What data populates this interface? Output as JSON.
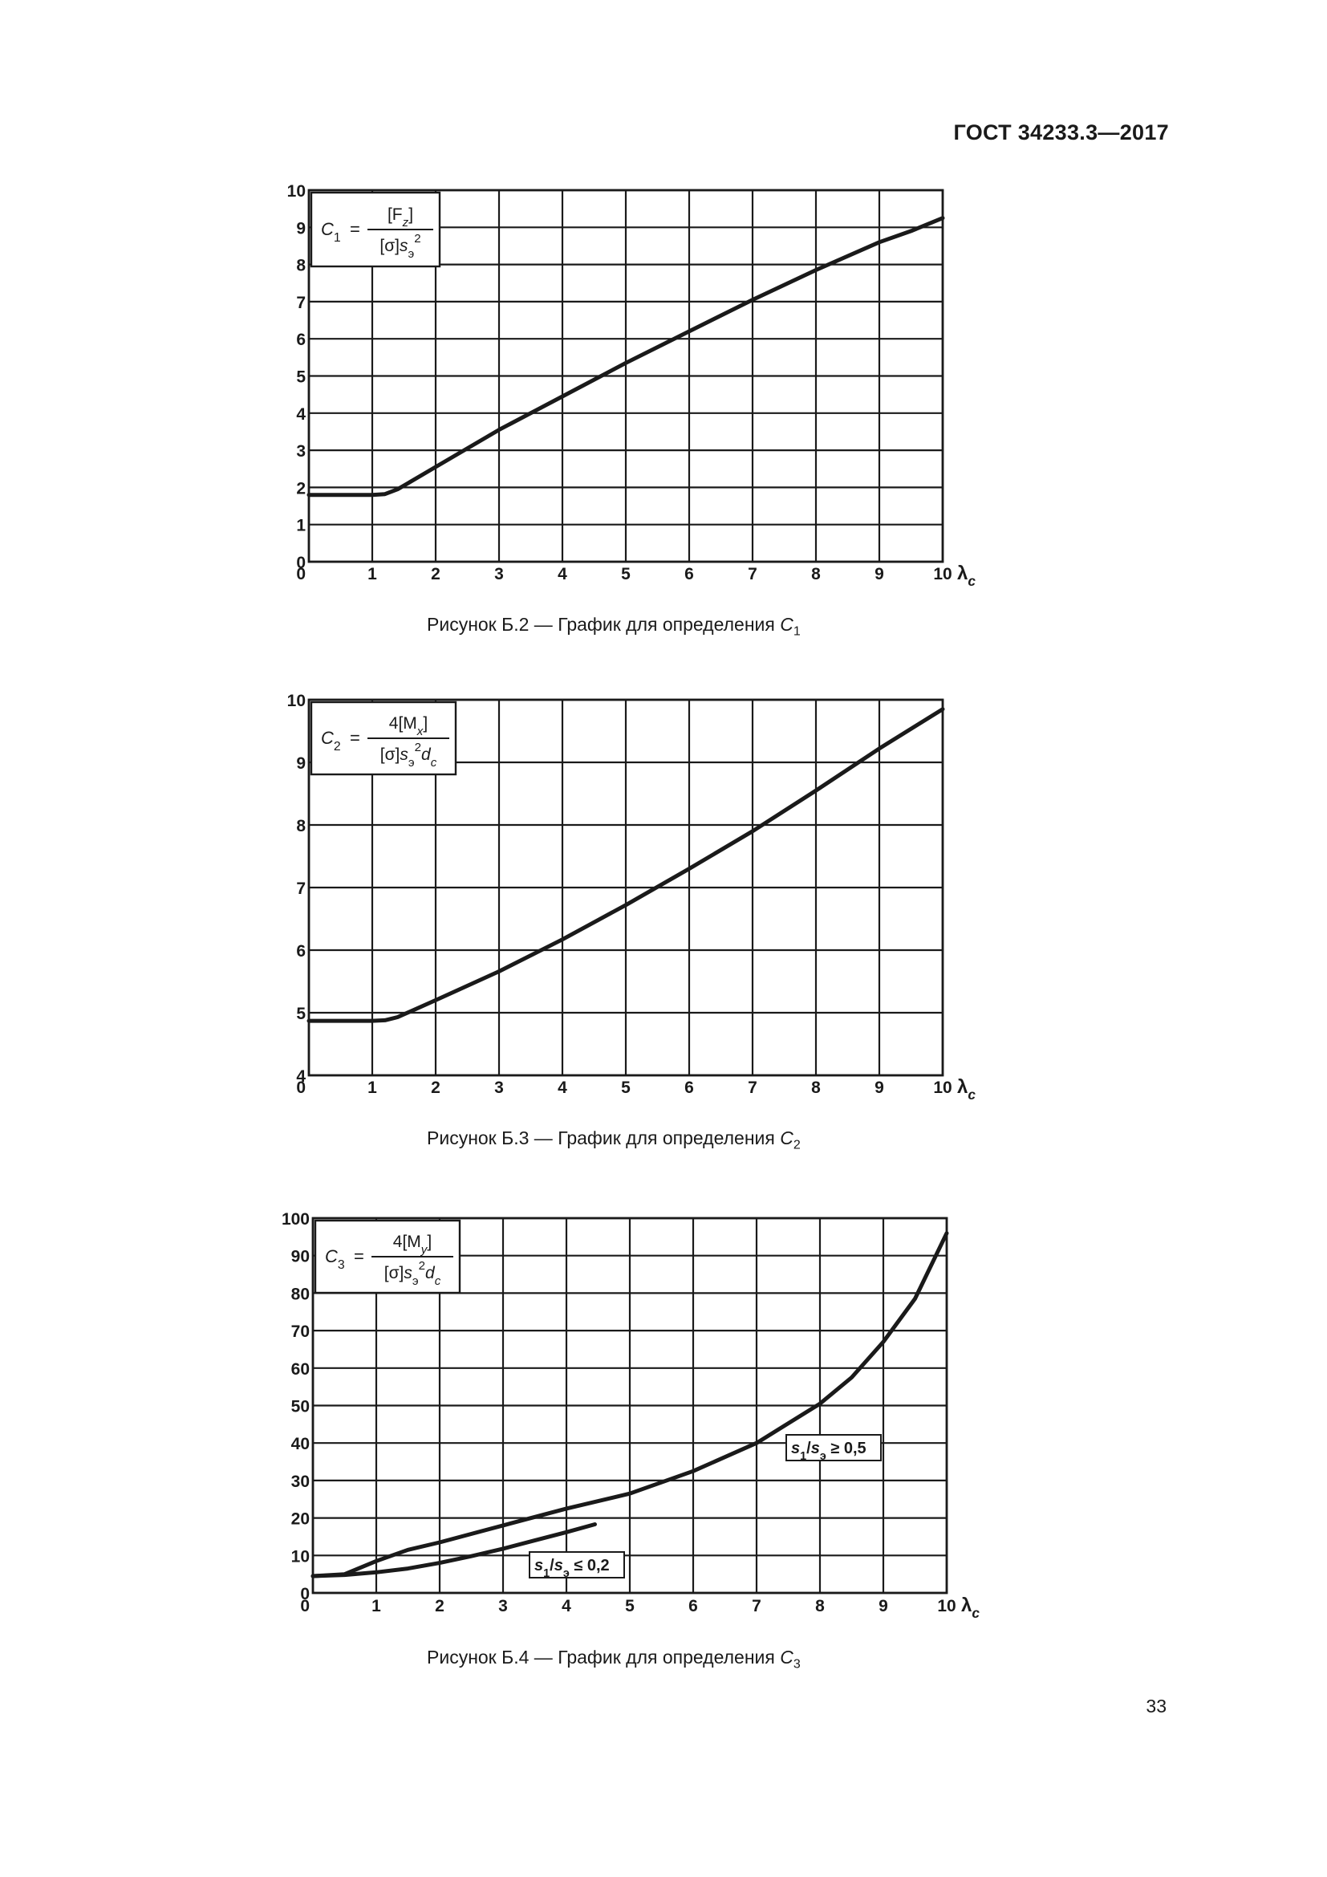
{
  "header": {
    "doc_id": "ГОСТ 34233.3—2017"
  },
  "page_number": "33",
  "figures": [
    {
      "caption": "Рисунок Б.2 — График для определения",
      "cvar": "C",
      "csub": "1"
    },
    {
      "caption": "Рисунок Б.3 — График для определения",
      "cvar": "C",
      "csub": "2"
    },
    {
      "caption": "Рисунок Б.4 — График для определения",
      "cvar": "C",
      "csub": "3"
    }
  ],
  "chart_data": [
    {
      "type": "line",
      "formula": {
        "lhs": "C",
        "lhs_sub": "1",
        "numerator": "[F",
        "numerator_sub": "z",
        "numerator_end": "]",
        "denominator": "[σ]s",
        "denominator_sub": "э",
        "denominator_sup": "2"
      },
      "xlabel": "λ",
      "xlabel_sub": "c",
      "xlim": [
        0,
        10
      ],
      "ylim": [
        0,
        10
      ],
      "x_ticks": [
        "0",
        "1",
        "2",
        "3",
        "4",
        "5",
        "6",
        "7",
        "8",
        "9",
        "10"
      ],
      "y_ticks": [
        "0",
        "1",
        "2",
        "3",
        "4",
        "5",
        "6",
        "7",
        "8",
        "9",
        "10"
      ],
      "grid": true,
      "series": [
        {
          "x": [
            0,
            1.0,
            1.2,
            1.4,
            2,
            3,
            4,
            5,
            6,
            7,
            8,
            9,
            9.5,
            10
          ],
          "y": [
            1.8,
            1.8,
            1.82,
            1.95,
            2.55,
            3.55,
            4.45,
            5.35,
            6.2,
            7.05,
            7.85,
            8.6,
            8.9,
            9.25
          ]
        }
      ],
      "annotations": []
    },
    {
      "type": "line",
      "formula": {
        "lhs": "C",
        "lhs_sub": "2",
        "numerator": "4[M",
        "numerator_sub": "x",
        "numerator_end": "]",
        "denominator": "[σ]s",
        "denominator_sub": "э",
        "denominator_sup": "2",
        "denominator_end": "d",
        "denominator_end_sub": "c"
      },
      "xlabel": "λ",
      "xlabel_sub": "c",
      "xlim": [
        0,
        10
      ],
      "ylim": [
        4,
        10
      ],
      "x_ticks": [
        "0",
        "1",
        "2",
        "3",
        "4",
        "5",
        "6",
        "7",
        "8",
        "9",
        "10"
      ],
      "y_ticks": [
        "4",
        "5",
        "6",
        "7",
        "8",
        "9",
        "10"
      ],
      "grid": true,
      "series": [
        {
          "x": [
            0,
            1.0,
            1.2,
            1.4,
            2,
            3,
            4,
            5,
            6,
            7,
            8,
            9,
            10
          ],
          "y": [
            4.87,
            4.87,
            4.88,
            4.93,
            5.2,
            5.66,
            6.17,
            6.72,
            7.3,
            7.9,
            8.55,
            9.22,
            9.85
          ]
        }
      ],
      "annotations": []
    },
    {
      "type": "line",
      "formula": {
        "lhs": "C",
        "lhs_sub": "3",
        "numerator": "4[M",
        "numerator_sub": "y",
        "numerator_end": "]",
        "denominator": "[σ]s",
        "denominator_sub": "э",
        "denominator_sup": "2",
        "denominator_end": "d",
        "denominator_end_sub": "c"
      },
      "xlabel": "λ",
      "xlabel_sub": "c",
      "xlim": [
        0,
        10
      ],
      "ylim": [
        0,
        100
      ],
      "x_ticks": [
        "0",
        "1",
        "2",
        "3",
        "4",
        "5",
        "6",
        "7",
        "8",
        "9",
        "10"
      ],
      "y_ticks": [
        "0",
        "10",
        "20",
        "30",
        "40",
        "50",
        "60",
        "70",
        "80",
        "90",
        "100"
      ],
      "grid": true,
      "series": [
        {
          "name": "s1/sэ ≥ 0,5",
          "x": [
            0,
            0.5,
            1,
            1.5,
            2,
            3,
            4,
            5,
            6,
            7,
            8,
            8.5,
            9,
            9.5,
            10
          ],
          "y": [
            4.5,
            5,
            8.5,
            11.5,
            13.5,
            18,
            22.5,
            26.5,
            32.5,
            40,
            50.5,
            57.5,
            67,
            78.5,
            96
          ]
        },
        {
          "name": "s1/sэ ≤ 0,2",
          "x": [
            0,
            0.5,
            1,
            1.5,
            2,
            2.5,
            3,
            3.5,
            4,
            4.45
          ],
          "y": [
            4.5,
            4.8,
            5.5,
            6.5,
            8,
            9.8,
            11.8,
            14,
            16.2,
            18.3
          ]
        }
      ],
      "annotations": [
        {
          "series": 0,
          "var1": "s",
          "sub1": "1",
          "var2": "s",
          "sub2": "э",
          "rel": "≥ 0,5"
        },
        {
          "series": 1,
          "var1": "s",
          "sub1": "1",
          "var2": "s",
          "sub2": "э",
          "rel": "≤ 0,2"
        }
      ]
    }
  ]
}
